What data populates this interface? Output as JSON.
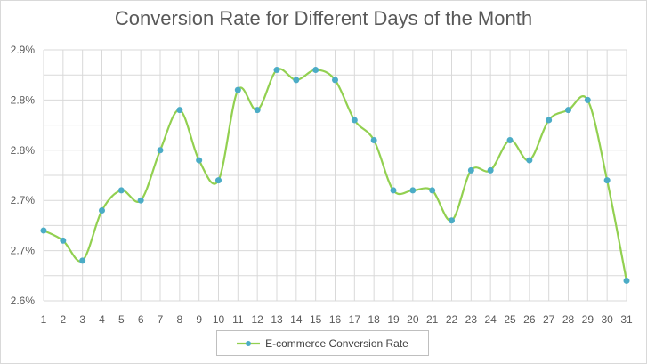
{
  "chart_data": {
    "type": "line",
    "title": "Conversion Rate for Different Days of the Month",
    "xlabel": "",
    "ylabel": "",
    "categories": [
      "1",
      "2",
      "3",
      "4",
      "5",
      "6",
      "7",
      "8",
      "9",
      "10",
      "11",
      "12",
      "13",
      "14",
      "15",
      "16",
      "17",
      "18",
      "19",
      "20",
      "21",
      "22",
      "23",
      "24",
      "25",
      "26",
      "27",
      "28",
      "29",
      "30",
      "31"
    ],
    "series": [
      {
        "name": "E-commerce Conversion Rate",
        "values": [
          0.0267,
          0.0266,
          0.0264,
          0.0269,
          0.0271,
          0.027,
          0.0275,
          0.0279,
          0.0274,
          0.0272,
          0.0281,
          0.0279,
          0.0283,
          0.0282,
          0.0283,
          0.0282,
          0.0278,
          0.0276,
          0.0271,
          0.0271,
          0.0271,
          0.0268,
          0.0273,
          0.0273,
          0.0276,
          0.0274,
          0.0278,
          0.0279,
          0.028,
          0.0272,
          0.0262
        ],
        "color": "#92d050",
        "marker_color": "#4bacc6"
      }
    ],
    "ylim": [
      0.026,
      0.0285
    ],
    "ytick_values": [
      0.026,
      0.0265,
      0.027,
      0.0275,
      0.028,
      0.0285
    ],
    "ytick_labels": [
      "2.6%",
      "2.7%",
      "2.7%",
      "2.8%",
      "2.8%",
      "2.9%"
    ],
    "grid": true,
    "legend_position": "bottom"
  }
}
